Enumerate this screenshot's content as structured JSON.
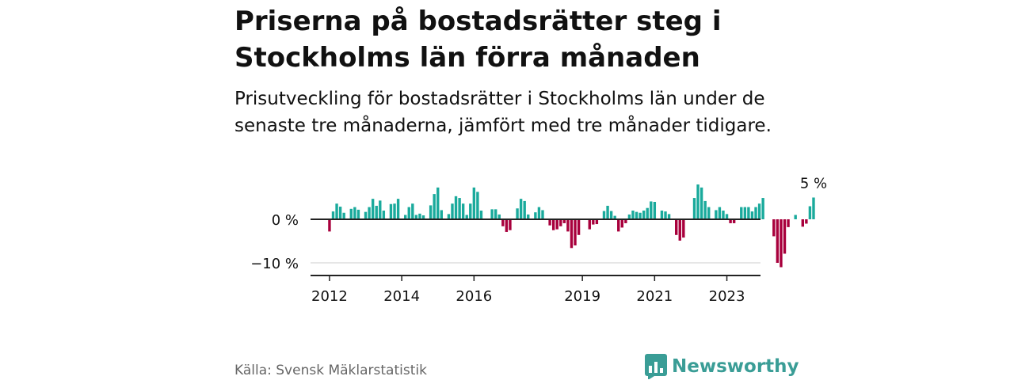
{
  "title": "Priserna på bostadsrätter steg i Stockholms län förra månaden",
  "subtitle": "Prisutveckling för bostadsrätter i Stockholms län under de senaste tre månaderna, jämfört med tre månader tidigare.",
  "source": "Källa: Svensk Mäklarstatistik",
  "brand": "Newsworthy",
  "colors": {
    "positive": "#1aaa9c",
    "negative": "#a8003c",
    "brand": "#3a9d96",
    "axis": "#222222",
    "grid": "#dddddd"
  },
  "chart_data": {
    "type": "bar",
    "title": "Priserna på bostadsrätter steg i Stockholms län förra månaden",
    "xlabel": "",
    "ylabel": "",
    "ylim": [
      -13,
      12
    ],
    "ytick_values": [
      0,
      -10
    ],
    "yticks": [
      "0 %",
      "−10 %"
    ],
    "xticks": [
      "2012",
      "2014",
      "2016",
      "2019",
      "2021",
      "2023"
    ],
    "xtick_indices": [
      4,
      24,
      44,
      74,
      94,
      114
    ],
    "start": "2011-09",
    "annotation": "5 %",
    "values": [
      0,
      0,
      0,
      0,
      -2.8,
      1.8,
      3.6,
      2.9,
      1.5,
      0,
      2.4,
      2.8,
      2.2,
      0,
      1.7,
      2.8,
      4.7,
      3.1,
      4.3,
      2.0,
      0,
      3.5,
      3.6,
      4.7,
      0,
      1.0,
      2.8,
      3.6,
      1.0,
      1.3,
      0.9,
      0,
      3.2,
      5.8,
      7.3,
      2.1,
      0,
      1.2,
      3.6,
      5.3,
      4.9,
      3.6,
      1.0,
      3.6,
      7.3,
      6.3,
      2.0,
      0,
      0,
      2.3,
      2.3,
      1.1,
      -1.6,
      -2.9,
      -2.5,
      0,
      2.5,
      4.7,
      4.2,
      1.1,
      0,
      1.6,
      2.8,
      2.1,
      0,
      -1.4,
      -2.5,
      -2.3,
      -1.6,
      -0.9,
      -2.8,
      -6.6,
      -6.0,
      -3.6,
      0,
      0,
      -2.3,
      -1.2,
      -1.1,
      0,
      1.9,
      3.1,
      1.9,
      0.8,
      -2.8,
      -1.9,
      -0.9,
      1.1,
      2.0,
      1.7,
      1.5,
      2.0,
      2.6,
      4.1,
      4.0,
      0,
      2.0,
      1.8,
      1.2,
      0,
      -3.6,
      -4.9,
      -4.2,
      0,
      0,
      4.9,
      8.0,
      7.3,
      4.2,
      2.8,
      0,
      2.1,
      2.8,
      2.0,
      1.2,
      -0.9,
      -0.9,
      0,
      2.8,
      2.8,
      2.8,
      1.8,
      2.8,
      3.6,
      4.9,
      0,
      0,
      -3.9,
      -10.0,
      -11.0,
      -7.9,
      -1.8,
      0,
      1.0,
      0,
      -1.7,
      -1.0,
      3.0,
      5.0
    ]
  }
}
